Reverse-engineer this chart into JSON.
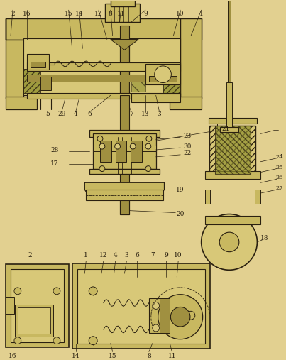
{
  "bg_color": "#e2d090",
  "line_color": "#2a2010",
  "fig_width": 4.03,
  "fig_height": 5.07,
  "dpi": 100
}
